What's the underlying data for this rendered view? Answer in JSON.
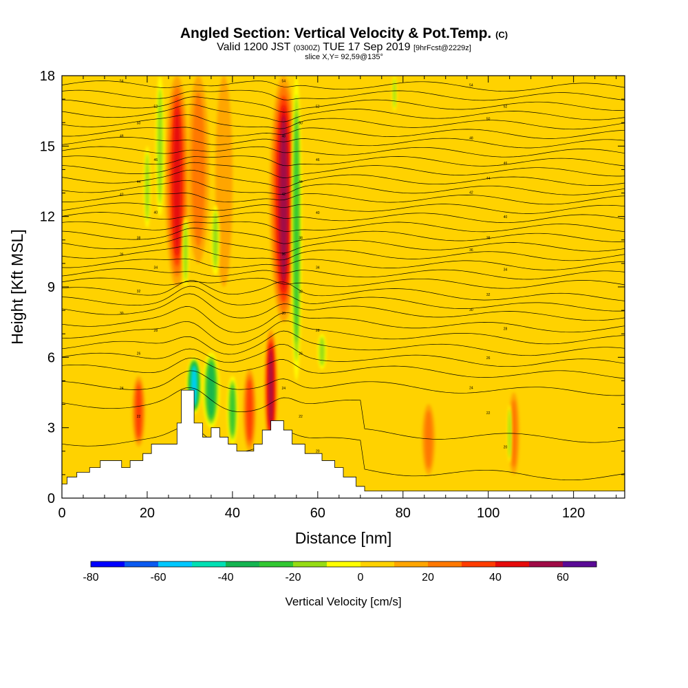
{
  "header": {
    "title": "Angled Section: Vertical Velocity & Pot.Temp.",
    "title_unit": "(C)",
    "valid_prefix": "Valid 1200 JST",
    "valid_z": "(0300Z)",
    "valid_date": "TUE 17 Sep 2019",
    "valid_fcst": "[9hrFcst@2229z]",
    "slice": "slice X,Y= 92,59@135°"
  },
  "chart_data": {
    "type": "heatmap",
    "title": "Angled Section: Vertical Velocity & Pot.Temp.",
    "xlabel": "Distance [nm]",
    "ylabel": "Height [Kft MSL]",
    "xlim": [
      0,
      132
    ],
    "ylim": [
      0,
      18
    ],
    "x_ticks": [
      "0",
      "20",
      "40",
      "60",
      "80",
      "100",
      "120"
    ],
    "x_tick_values": [
      0,
      20,
      40,
      60,
      80,
      100,
      120
    ],
    "y_ticks": [
      "0",
      "3",
      "6",
      "9",
      "12",
      "15",
      "18"
    ],
    "y_tick_values": [
      0,
      3,
      6,
      9,
      12,
      15,
      18
    ],
    "grid": false,
    "colorbar": {
      "title": "Vertical Velocity [cm/s]",
      "min": -80,
      "max": 70,
      "step": 10,
      "tick_labels": [
        "-80",
        "-60",
        "-40",
        "-20",
        "0",
        "20",
        "40",
        "60"
      ],
      "tick_values": [
        -80,
        -60,
        -40,
        -20,
        0,
        20,
        40,
        60
      ],
      "colors": [
        "#0000ff",
        "#0a5af0",
        "#00c8ff",
        "#00e0b4",
        "#14b450",
        "#32c832",
        "#96dc14",
        "#ffff00",
        "#ffd200",
        "#ffa500",
        "#ff7800",
        "#ff3c00",
        "#e60a0a",
        "#a00a46",
        "#5a0a96"
      ]
    },
    "background_velocity": 5,
    "terrain": [
      [
        0,
        0.6
      ],
      [
        1.2,
        0.6
      ],
      [
        1.2,
        0.9
      ],
      [
        3.5,
        0.9
      ],
      [
        3.5,
        1.1
      ],
      [
        6.5,
        1.1
      ],
      [
        6.5,
        1.3
      ],
      [
        9,
        1.3
      ],
      [
        9,
        1.6
      ],
      [
        14,
        1.6
      ],
      [
        14,
        1.3
      ],
      [
        16,
        1.3
      ],
      [
        16,
        1.6
      ],
      [
        19,
        1.6
      ],
      [
        19,
        1.9
      ],
      [
        21,
        1.9
      ],
      [
        21,
        2.3
      ],
      [
        27,
        2.3
      ],
      [
        27,
        3.2
      ],
      [
        28,
        3.2
      ],
      [
        28,
        4.6
      ],
      [
        31,
        4.6
      ],
      [
        31,
        3.2
      ],
      [
        33,
        3.2
      ],
      [
        33,
        2.6
      ],
      [
        35,
        2.6
      ],
      [
        35,
        3.0
      ],
      [
        37,
        3.0
      ],
      [
        37,
        2.6
      ],
      [
        39,
        2.6
      ],
      [
        39,
        2.3
      ],
      [
        41,
        2.3
      ],
      [
        41,
        2.0
      ],
      [
        45,
        2.0
      ],
      [
        45,
        2.3
      ],
      [
        47,
        2.3
      ],
      [
        47,
        2.9
      ],
      [
        49,
        2.9
      ],
      [
        49,
        3.3
      ],
      [
        52,
        3.3
      ],
      [
        52,
        2.9
      ],
      [
        54,
        2.9
      ],
      [
        54,
        2.3
      ],
      [
        57,
        2.3
      ],
      [
        57,
        1.9
      ],
      [
        61,
        1.9
      ],
      [
        61,
        1.6
      ],
      [
        64,
        1.6
      ],
      [
        64,
        1.3
      ],
      [
        66,
        1.3
      ],
      [
        66,
        0.9
      ],
      [
        69,
        0.9
      ],
      [
        69,
        0.5
      ],
      [
        71,
        0.5
      ],
      [
        71,
        0.3
      ],
      [
        132,
        0.3
      ]
    ],
    "updrafts": [
      {
        "x": 27,
        "y0": 9.0,
        "y1": 18,
        "w": 5.5,
        "v": 45
      },
      {
        "x": 32,
        "y0": 10.0,
        "y1": 18,
        "w": 5.0,
        "v": 30
      },
      {
        "x": 52,
        "y0": 7.5,
        "y1": 18,
        "w": 6.5,
        "v": 62
      },
      {
        "x": 49,
        "y0": 2.2,
        "y1": 7.2,
        "w": 3.0,
        "v": 62
      },
      {
        "x": 18,
        "y0": 2.2,
        "y1": 5.2,
        "w": 3.0,
        "v": 42
      },
      {
        "x": 44,
        "y0": 2.0,
        "y1": 5.5,
        "w": 3.0,
        "v": 42
      },
      {
        "x": 86,
        "y0": 1.0,
        "y1": 4.0,
        "w": 3.0,
        "v": 25
      },
      {
        "x": 106,
        "y0": 1.0,
        "y1": 4.5,
        "w": 2.5,
        "v": 30
      },
      {
        "x": 38,
        "y0": 9.0,
        "y1": 18,
        "w": 4.0,
        "v": 18
      },
      {
        "x": 68,
        "y0": 1.0,
        "y1": 18,
        "w": 4.0,
        "v": 12
      },
      {
        "x": 124,
        "y0": 0.5,
        "y1": 18,
        "w": 3.0,
        "v": 12
      },
      {
        "x": 8,
        "y0": 1.2,
        "y1": 4.5,
        "w": 6.0,
        "v": 12
      }
    ],
    "downdrafts": [
      {
        "x": 31,
        "y0": 3.6,
        "y1": 6.0,
        "w": 3.5,
        "v": -55
      },
      {
        "x": 35,
        "y0": 3.0,
        "y1": 6.2,
        "w": 4.0,
        "v": -35
      },
      {
        "x": 40,
        "y0": 2.3,
        "y1": 5.2,
        "w": 2.5,
        "v": -25
      },
      {
        "x": 55,
        "y0": 5.0,
        "y1": 18,
        "w": 2.5,
        "v": -25
      },
      {
        "x": 23,
        "y0": 12.0,
        "y1": 18,
        "w": 2.0,
        "v": -20
      },
      {
        "x": 20,
        "y0": 11.5,
        "y1": 15.0,
        "w": 1.5,
        "v": -15
      },
      {
        "x": 36,
        "y0": 9.5,
        "y1": 12.5,
        "w": 2.0,
        "v": -15
      },
      {
        "x": 61,
        "y0": 5.5,
        "y1": 7.0,
        "w": 2.0,
        "v": -15
      },
      {
        "x": 29,
        "y0": 9.0,
        "y1": 12.0,
        "w": 1.5,
        "v": -15
      },
      {
        "x": 105,
        "y0": 1.5,
        "y1": 4.0,
        "w": 1.0,
        "v": -15
      },
      {
        "x": 78,
        "y0": 16.5,
        "y1": 18,
        "w": 1.0,
        "v": -15
      }
    ],
    "theta_levels": [
      {
        "y0": 17.6,
        "label": "54"
      },
      {
        "y0": 17.2,
        "label": ""
      },
      {
        "y0": 16.8,
        "label": "52"
      },
      {
        "y0": 16.4,
        "label": ""
      },
      {
        "y0": 16.0,
        "label": "50"
      },
      {
        "y0": 15.6,
        "label": ""
      },
      {
        "y0": 15.2,
        "label": "48"
      },
      {
        "y0": 14.8,
        "label": ""
      },
      {
        "y0": 14.4,
        "label": "46"
      },
      {
        "y0": 14.0,
        "label": ""
      },
      {
        "y0": 13.6,
        "label": "44"
      },
      {
        "y0": 13.2,
        "label": ""
      },
      {
        "y0": 12.8,
        "label": "42"
      },
      {
        "y0": 12.4,
        "label": ""
      },
      {
        "y0": 12.0,
        "label": "40"
      },
      {
        "y0": 11.6,
        "label": ""
      },
      {
        "y0": 11.2,
        "label": "38"
      },
      {
        "y0": 10.8,
        "label": ""
      },
      {
        "y0": 10.4,
        "label": "36"
      },
      {
        "y0": 10.0,
        "label": ""
      },
      {
        "y0": 9.6,
        "label": "34"
      },
      {
        "y0": 9.2,
        "label": ""
      },
      {
        "y0": 8.8,
        "label": "32"
      },
      {
        "y0": 8.4,
        "label": ""
      },
      {
        "y0": 8.0,
        "label": "30"
      },
      {
        "y0": 7.5,
        "label": ""
      },
      {
        "y0": 7.0,
        "label": "28"
      },
      {
        "y0": 6.5,
        "label": ""
      },
      {
        "y0": 6.0,
        "label": "26"
      },
      {
        "y0": 5.5,
        "label": ""
      },
      {
        "y0": 4.8,
        "label": "24"
      },
      {
        "y0": 3.6,
        "label": "22"
      },
      {
        "y0": 2.0,
        "label": "20"
      }
    ]
  }
}
